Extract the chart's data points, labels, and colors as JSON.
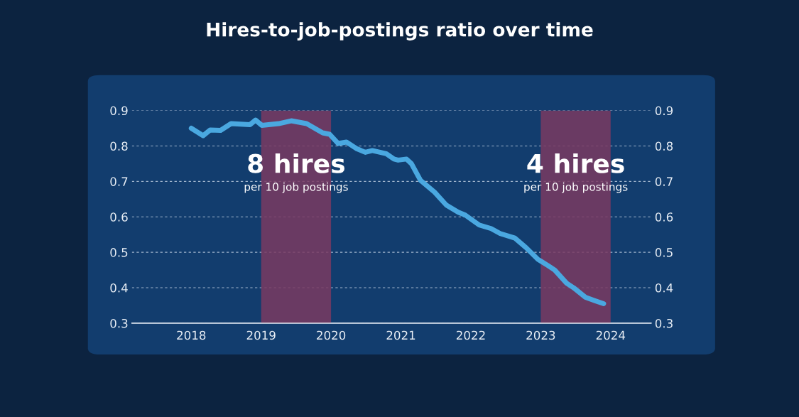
{
  "chart_data": {
    "type": "line",
    "title": "Hires-to-job-postings ratio over time",
    "x": [
      2018.0,
      2018.17,
      2018.27,
      2018.42,
      2018.57,
      2018.84,
      2018.92,
      2019.01,
      2019.25,
      2019.43,
      2019.65,
      2019.88,
      2019.98,
      2020.1,
      2020.22,
      2020.36,
      2020.49,
      2020.59,
      2020.79,
      2020.9,
      2020.96,
      2021.08,
      2021.15,
      2021.28,
      2021.48,
      2021.65,
      2021.82,
      2021.92,
      2022.12,
      2022.29,
      2022.42,
      2022.63,
      2022.79,
      2022.96,
      2023.1,
      2023.2,
      2023.37,
      2023.47,
      2023.64,
      2023.78,
      2023.9
    ],
    "series": [
      {
        "color": "#4aa8e0",
        "values": [
          0.85,
          0.829,
          0.845,
          0.844,
          0.863,
          0.86,
          0.873,
          0.858,
          0.863,
          0.871,
          0.863,
          0.837,
          0.833,
          0.807,
          0.811,
          0.793,
          0.782,
          0.787,
          0.778,
          0.763,
          0.76,
          0.763,
          0.75,
          0.703,
          0.67,
          0.633,
          0.613,
          0.605,
          0.577,
          0.567,
          0.553,
          0.54,
          0.513,
          0.48,
          0.463,
          0.45,
          0.413,
          0.4,
          0.373,
          0.363,
          0.355
        ]
      }
    ],
    "xlim": [
      2017.15,
      2024.58
    ],
    "xticks": [
      2018,
      2019,
      2020,
      2021,
      2022,
      2023,
      2024
    ],
    "ylim": [
      0.3,
      0.9
    ],
    "yticks": [
      0.3,
      0.4,
      0.5,
      0.6,
      0.7,
      0.8,
      0.9
    ],
    "y2lim": [
      0.3,
      0.9
    ],
    "y2ticks": [
      0.3,
      0.4,
      0.5,
      0.6,
      0.7,
      0.8,
      0.9
    ],
    "grid": "y",
    "marker": "none",
    "line_style": "solid",
    "bands": [
      {
        "axis": "x",
        "from": 2019,
        "to": 2020,
        "color": "#7a3a62"
      },
      {
        "axis": "x",
        "from": 2023,
        "to": 2024,
        "color": "#7a3a62"
      }
    ],
    "annotations": [
      "8 hires",
      "per 10 job postings",
      "4 hires",
      "per 10 job postings"
    ]
  }
}
